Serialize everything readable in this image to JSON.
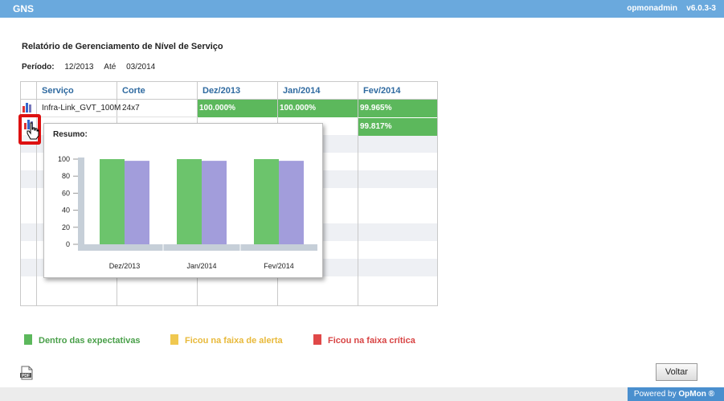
{
  "app": {
    "title": "GNS",
    "user": "opmonadmin",
    "version": "v6.0.3-3"
  },
  "report": {
    "title": "Relatório de Gerenciamento de Nível de Serviço",
    "period_label": "Período:",
    "period_start": "12/2013",
    "period_sep": "Até",
    "period_end": "03/2014"
  },
  "table": {
    "headers": [
      "Serviço",
      "Corte",
      "Dez/2013",
      "Jan/2014",
      "Fev/2014"
    ],
    "rows": [
      {
        "service": "Infra-Link_GVT_100M",
        "cut": "24x7",
        "values": [
          "100.000%",
          "100.000%",
          "99.965%"
        ]
      },
      {
        "service": "",
        "cut": "",
        "values": [
          "",
          "",
          "99.817%"
        ]
      }
    ]
  },
  "popup": {
    "title": "Resumo:"
  },
  "chart_data": {
    "type": "bar",
    "categories": [
      "Dez/2013",
      "Jan/2014",
      "Fev/2014"
    ],
    "series": [
      {
        "color": "#6cc46c",
        "values": [
          100,
          100,
          100
        ]
      },
      {
        "color": "#a29ddb",
        "values": [
          98,
          98,
          98
        ]
      }
    ],
    "yticks": [
      0,
      20,
      40,
      60,
      80,
      100
    ],
    "ylim": [
      0,
      100
    ]
  },
  "legend": [
    {
      "label": "Dentro das expectativas",
      "color": "#5cb85c"
    },
    {
      "label": "Ficou na faixa de alerta",
      "color": "#f0c850"
    },
    {
      "label": "Ficou na faixa crítica",
      "color": "#e04848"
    }
  ],
  "buttons": {
    "back": "Voltar"
  },
  "footer": {
    "powered_prefix": "Powered by",
    "powered_brand": "OpMon ®"
  },
  "colors": {
    "topbar": "#6aa9dd",
    "header_text": "#2f6aa0",
    "ok": "#5cb85c",
    "highlight": "#dd1111"
  }
}
